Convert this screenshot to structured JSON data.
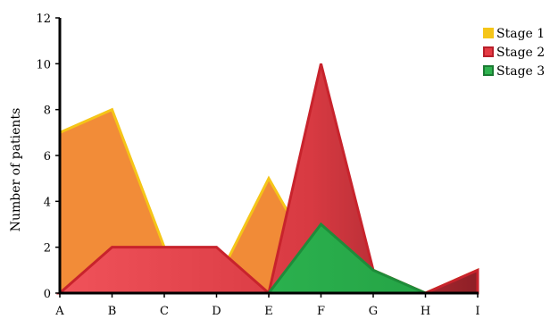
{
  "chart_data": {
    "type": "area",
    "categories": [
      "A",
      "B",
      "C",
      "D",
      "E",
      "F",
      "G",
      "H",
      "I"
    ],
    "series": [
      {
        "name": "Stage 1",
        "values": [
          7,
          8,
          2,
          0.5,
          5,
          1,
          1,
          0,
          1
        ],
        "color": "#f28c38",
        "stroke": "#f5c518"
      },
      {
        "name": "Stage 2",
        "values": [
          0,
          2,
          2,
          2,
          0,
          10,
          1,
          0,
          1
        ],
        "color": "#e53b44",
        "stroke": "#c8232c"
      },
      {
        "name": "Stage 3",
        "values": [
          0,
          0,
          0,
          0,
          0,
          3,
          1,
          0,
          0
        ],
        "color": "#2fb34f",
        "stroke": "#1e8c3a"
      }
    ],
    "xlabel": "",
    "ylabel": "Number of patients",
    "ylim": [
      0,
      12
    ],
    "yticks": [
      0,
      2,
      4,
      6,
      8,
      10,
      12
    ],
    "grid": false,
    "legend_position": "top-right",
    "legend_marker_colors": [
      "#f5c518",
      "#e53b44",
      "#2fb34f"
    ]
  }
}
